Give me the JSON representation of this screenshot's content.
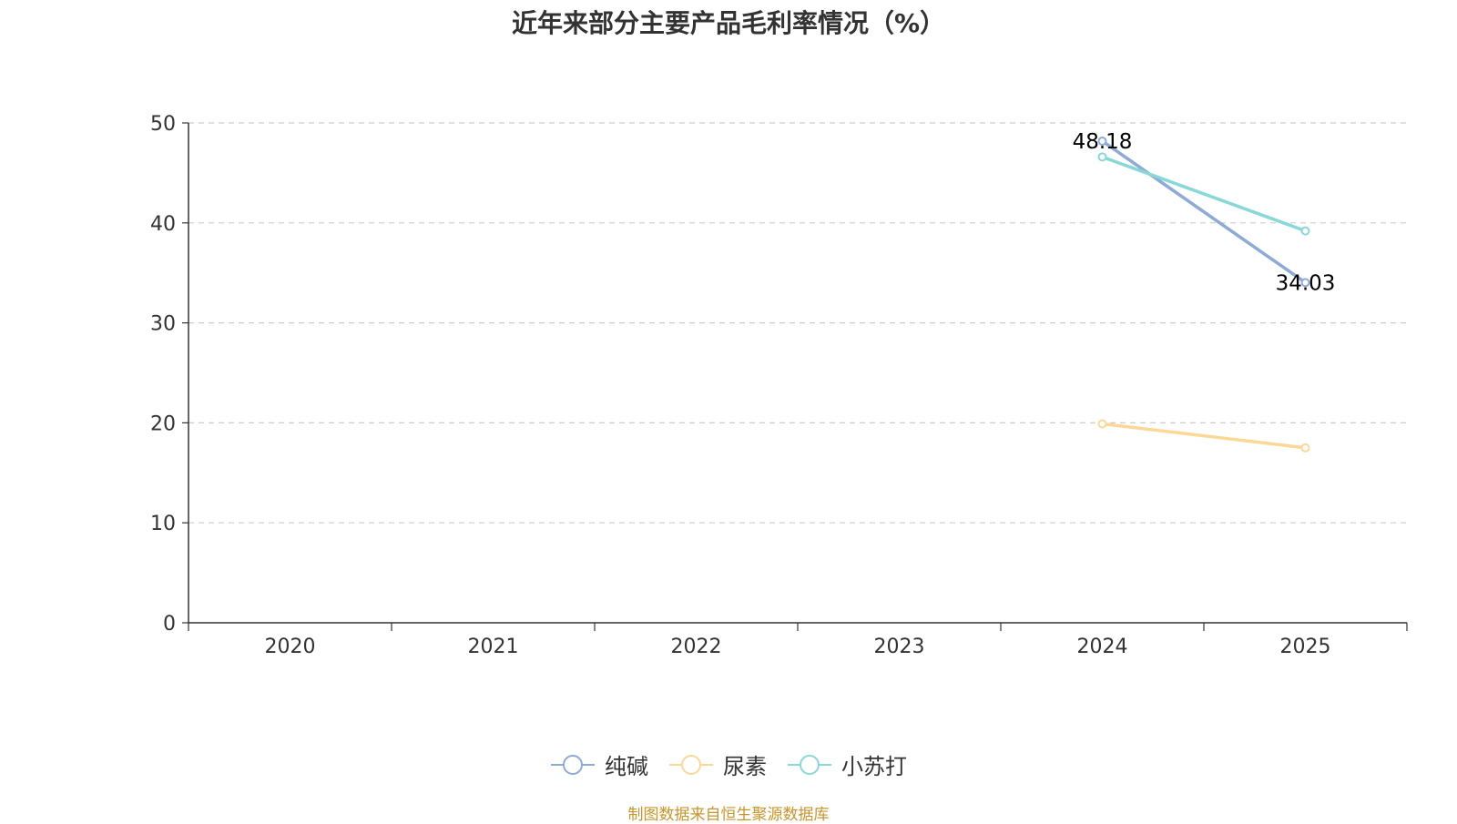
{
  "colors": {
    "series": [
      "#8eaad6",
      "#fcd896",
      "#88d8d8"
    ],
    "axis": "#333333",
    "grid": "#cccccc",
    "source": "#c8952a"
  },
  "chart_data": {
    "type": "line",
    "title": "近年来部分主要产品毛利率情况（%）",
    "categories": [
      "2020",
      "2021",
      "2022",
      "2023",
      "2024",
      "2025"
    ],
    "ylim": [
      0,
      50
    ],
    "yticks": [
      "0",
      "10",
      "20",
      "30",
      "40",
      "50"
    ],
    "grid": true,
    "legend_position": "bottom-center",
    "series": [
      {
        "name": "纯碱",
        "values": [
          null,
          null,
          null,
          null,
          48.18,
          34.03
        ],
        "labels": [
          "",
          "",
          "",
          "",
          "48.18",
          "34.03"
        ]
      },
      {
        "name": "尿素",
        "values": [
          null,
          null,
          null,
          null,
          19.9,
          17.5
        ],
        "labels": [
          "",
          "",
          "",
          "",
          "",
          ""
        ]
      },
      {
        "name": "小苏打",
        "values": [
          null,
          null,
          null,
          null,
          46.6,
          39.2
        ],
        "labels": [
          "",
          "",
          "",
          "",
          "",
          ""
        ]
      }
    ]
  },
  "legend": {
    "items": [
      "纯碱",
      "尿素",
      "小苏打"
    ]
  },
  "source": "制图数据来自恒生聚源数据库"
}
